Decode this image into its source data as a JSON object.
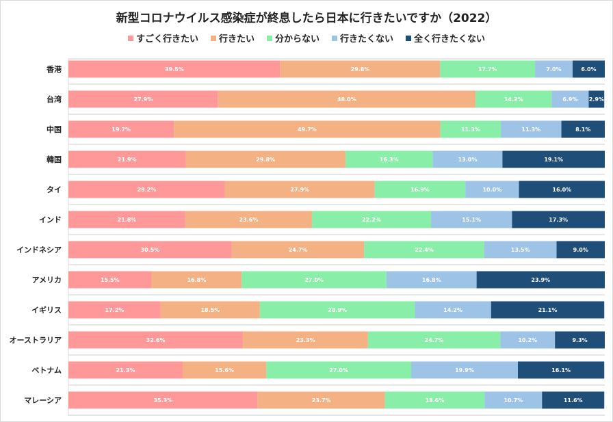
{
  "chart_data": {
    "type": "bar",
    "orientation": "horizontal",
    "stacked": true,
    "title": "新型コロナウイルス感染症が終息したら日本に行きたいですか（2022）",
    "categories": [
      "香港",
      "台湾",
      "中国",
      "韓国",
      "タイ",
      "インド",
      "インドネシア",
      "アメリカ",
      "イギリス",
      "オーストラリア",
      "ベトナム",
      "マレーシア"
    ],
    "series": [
      {
        "name": "すごく行きたい",
        "color": "#ff9999",
        "values": [
          39.5,
          27.9,
          19.7,
          21.9,
          29.2,
          21.8,
          30.5,
          15.5,
          17.2,
          32.6,
          21.3,
          35.3
        ]
      },
      {
        "name": "行きたい",
        "color": "#f4b183",
        "values": [
          29.8,
          48.0,
          49.7,
          29.8,
          27.9,
          23.6,
          24.7,
          16.8,
          18.5,
          23.3,
          15.6,
          23.7
        ]
      },
      {
        "name": "分からない",
        "color": "#88eea8",
        "values": [
          17.7,
          14.2,
          11.3,
          16.3,
          16.9,
          22.2,
          22.4,
          27.0,
          28.9,
          24.7,
          27.0,
          18.6
        ]
      },
      {
        "name": "行きたくない",
        "color": "#9dc3e6",
        "values": [
          7.0,
          6.9,
          11.3,
          13.0,
          10.0,
          15.1,
          13.5,
          16.8,
          14.2,
          10.2,
          19.9,
          10.7
        ]
      },
      {
        "name": "全く行きたくない",
        "color": "#1f4e79",
        "values": [
          6.0,
          2.9,
          8.1,
          19.1,
          16.0,
          17.3,
          9.0,
          23.9,
          21.1,
          9.3,
          16.1,
          11.6
        ]
      }
    ],
    "xlim": [
      0,
      100
    ],
    "legend": "top",
    "value_suffix": "%"
  }
}
